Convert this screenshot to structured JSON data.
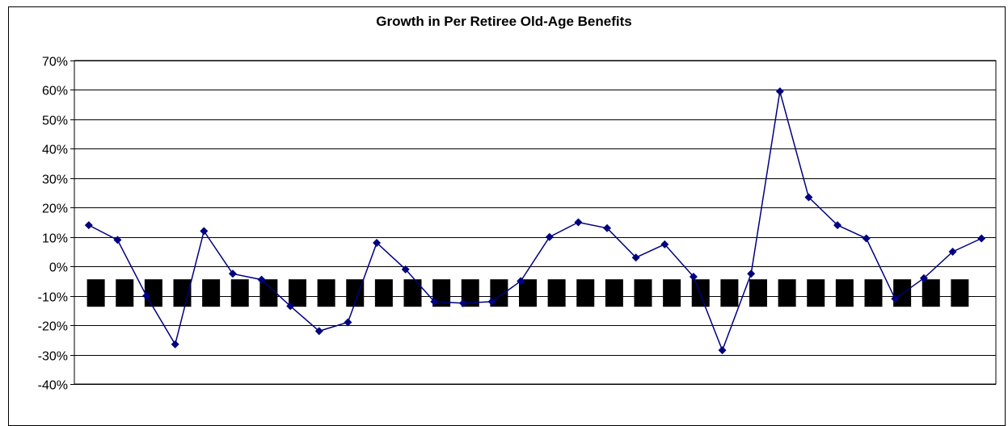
{
  "chart_data": {
    "type": "line",
    "title": "Growth in Per Retiree Old-Age Benefits",
    "xlabel": "",
    "ylabel": "",
    "ylim": [
      -40,
      70
    ],
    "yticks": [
      "70%",
      "60%",
      "50%",
      "40%",
      "30%",
      "20%",
      "10%",
      "0%",
      "-10%",
      "-20%",
      "-30%",
      "-40%"
    ],
    "ytick_values": [
      70,
      60,
      50,
      40,
      30,
      20,
      10,
      0,
      -10,
      -20,
      -30,
      -40
    ],
    "grid": true,
    "legend": "none",
    "series": [
      {
        "values": [
          14,
          9,
          -10,
          -26.5,
          12,
          -2.5,
          -4.5,
          -13.5,
          -22,
          -19,
          8,
          -1,
          -12,
          -12.5,
          -12,
          -5,
          10,
          15,
          13,
          3,
          7.5,
          -3.5,
          -28.5,
          -2.5,
          59.5,
          23.5,
          14,
          9.5,
          -11,
          -4,
          5,
          9.5
        ]
      }
    ],
    "redacted_labels": 31,
    "colors": {
      "line": "#000080",
      "marker": "#000080",
      "grid": "#000000",
      "redaction": "#000000"
    }
  }
}
